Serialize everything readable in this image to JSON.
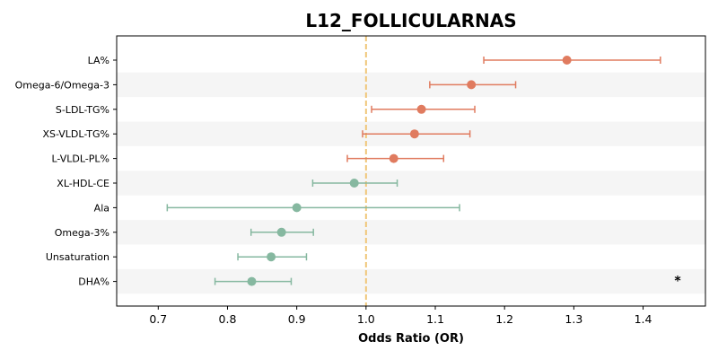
{
  "chart_data": {
    "type": "forest",
    "title": "L12_FOLLICULARNAS",
    "xlabel": "Odds Ratio (OR)",
    "ylabel": "",
    "xlim": [
      0.64,
      1.49
    ],
    "x_ticks": [
      0.7,
      0.8,
      0.9,
      1.0,
      1.1,
      1.2,
      1.3,
      1.4
    ],
    "x_tick_labels": [
      "0.7",
      "0.8",
      "0.9",
      "1.0",
      "1.1",
      "1.2",
      "1.3",
      "1.4"
    ],
    "reference_line": 1.0,
    "reference_line_color": "#f0c77a",
    "grid": false,
    "alternating_row_shading": "#f5f5f5",
    "colors": {
      "above_one": "#e07b5f",
      "below_one": "#86b8a0"
    },
    "rows": [
      {
        "label": "LA%",
        "or": 1.29,
        "ci_low": 1.17,
        "ci_high": 1.425,
        "annotation": ""
      },
      {
        "label": "Omega-6/Omega-3",
        "or": 1.152,
        "ci_low": 1.092,
        "ci_high": 1.216,
        "annotation": ""
      },
      {
        "label": "S-LDL-TG%",
        "or": 1.08,
        "ci_low": 1.008,
        "ci_high": 1.157,
        "annotation": ""
      },
      {
        "label": "XS-VLDL-TG%",
        "or": 1.07,
        "ci_low": 0.995,
        "ci_high": 1.15,
        "annotation": ""
      },
      {
        "label": "L-VLDL-PL%",
        "or": 1.04,
        "ci_low": 0.973,
        "ci_high": 1.112,
        "annotation": ""
      },
      {
        "label": "XL-HDL-CE",
        "or": 0.983,
        "ci_low": 0.923,
        "ci_high": 1.045,
        "annotation": ""
      },
      {
        "label": "Ala",
        "or": 0.9,
        "ci_low": 0.713,
        "ci_high": 1.135,
        "annotation": ""
      },
      {
        "label": "Omega-3%",
        "or": 0.878,
        "ci_low": 0.834,
        "ci_high": 0.924,
        "annotation": ""
      },
      {
        "label": "Unsaturation",
        "or": 0.863,
        "ci_low": 0.815,
        "ci_high": 0.914,
        "annotation": ""
      },
      {
        "label": "DHA%",
        "or": 0.835,
        "ci_low": 0.782,
        "ci_high": 0.892,
        "annotation": "*"
      }
    ]
  }
}
